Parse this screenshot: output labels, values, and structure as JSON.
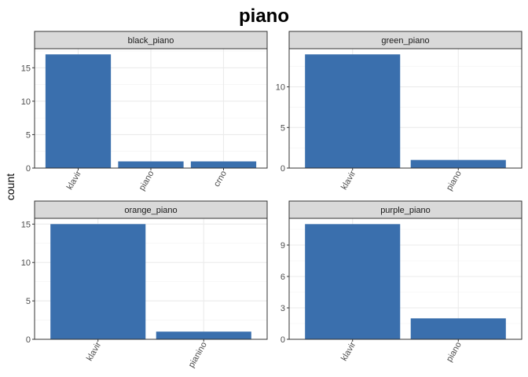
{
  "chart_data": {
    "type": "bar",
    "title": "piano",
    "ylabel": "count",
    "xlabel": "",
    "bar_color": "#3a6fad",
    "strip_fill": "#d9d9d9",
    "grid": true,
    "panels": [
      {
        "name": "black_piano",
        "categories": [
          "klavir",
          "piano",
          "crno"
        ],
        "values": [
          17,
          1,
          1
        ],
        "ylim": [
          0,
          17.85
        ],
        "yticks": [
          0,
          5,
          10,
          15
        ]
      },
      {
        "name": "green_piano",
        "categories": [
          "klavir",
          "piano"
        ],
        "values": [
          14,
          1
        ],
        "ylim": [
          0,
          14.7
        ],
        "yticks": [
          0,
          5,
          10
        ]
      },
      {
        "name": "orange_piano",
        "categories": [
          "klavir",
          "pianino"
        ],
        "values": [
          15,
          1
        ],
        "ylim": [
          0,
          15.75
        ],
        "yticks": [
          0,
          5,
          10,
          15
        ]
      },
      {
        "name": "purple_piano",
        "categories": [
          "klavir",
          "piano"
        ],
        "values": [
          11,
          2
        ],
        "ylim": [
          0,
          11.55
        ],
        "yticks": [
          0,
          3,
          6,
          9
        ]
      }
    ]
  }
}
